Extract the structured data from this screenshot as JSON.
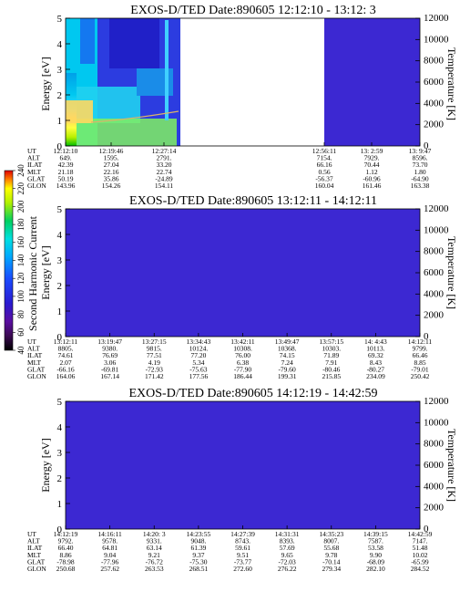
{
  "colors": {
    "background_blue": "#3c28d2",
    "plot_white": "#ffffff",
    "temperature_curve": "#d9b36a"
  },
  "colorbar": {
    "label": "Second Harmonic Current",
    "ticks": [
      "40",
      "60",
      "80",
      "100",
      "120",
      "140",
      "160",
      "180",
      "200",
      "220",
      "240"
    ]
  },
  "ephemeris_row_labels": [
    "UT",
    "ALT",
    "ILAT",
    "MLT",
    "GLAT",
    "GLON"
  ],
  "chart_data": [
    {
      "type": "heatmap",
      "title": "EXOS-D/TED   Date:890605   12:12:10 - 13:12: 3",
      "ylabel": "Energy [eV]",
      "y2label": "Temperature [K]",
      "ylim": [
        0,
        5
      ],
      "y2lim": [
        0,
        12000
      ],
      "yticks": [
        "0",
        "1",
        "2",
        "3",
        "4",
        "5"
      ],
      "y2ticks": [
        "0",
        "2000",
        "4000",
        "6000",
        "8000",
        "10000",
        "12000"
      ],
      "data_gap": "12:27:14 - 12:56:11",
      "ephemeris": [
        [
          "12:12:10",
          "649.",
          "42.39",
          "21.18",
          "50.19",
          "143.96"
        ],
        [
          "12:19:46",
          "1595.",
          "27.04",
          "22.16",
          "35.86",
          "154.26"
        ],
        [
          "12:27:14",
          "2791.",
          "33.20",
          "22.74",
          "-24.89",
          "154.11"
        ],
        [
          "12:56:11",
          "7154.",
          "66.16",
          "0.56",
          "-56.37",
          "160.04"
        ],
        [
          "13: 2:59",
          "7929.",
          "70.44",
          "1.12",
          "-60.96",
          "161.46"
        ],
        [
          "13: 9:47",
          "8596.",
          "73.70",
          "1.80",
          "-64.90",
          "163.38"
        ]
      ]
    },
    {
      "type": "heatmap",
      "title": "EXOS-D/TED   Date:890605   13:12:11 - 14:12:11",
      "ylabel": "Energy [eV]",
      "y2label": "Temperature [K]",
      "ylim": [
        0,
        5
      ],
      "y2lim": [
        0,
        12000
      ],
      "yticks": [
        "0",
        "1",
        "2",
        "3",
        "4",
        "5"
      ],
      "y2ticks": [
        "0",
        "2000",
        "4000",
        "6000",
        "8000",
        "10000",
        "12000"
      ],
      "ephemeris": [
        [
          "13:12:11",
          "8805.",
          "74.61",
          "2.07",
          "-66.16",
          "164.06"
        ],
        [
          "13:19:47",
          "9380.",
          "76.69",
          "3.06",
          "-69.81",
          "167.14"
        ],
        [
          "13:27:15",
          "9815.",
          "77.51",
          "4.19",
          "-72.93",
          "171.42"
        ],
        [
          "13:34:43",
          "10124.",
          "77.20",
          "5.34",
          "-75.63",
          "177.56"
        ],
        [
          "13:42:11",
          "10308.",
          "76.00",
          "6.38",
          "-77.90",
          "186.44"
        ],
        [
          "13:49:47",
          "10368.",
          "74.15",
          "7.24",
          "-79.60",
          "199.31"
        ],
        [
          "13:57:15",
          "10303.",
          "71.89",
          "7.91",
          "-80.46",
          "215.85"
        ],
        [
          "14: 4:43",
          "10113.",
          "69.32",
          "8.43",
          "-80.27",
          "234.09"
        ],
        [
          "14:12:11",
          "9799.",
          "66.46",
          "8.85",
          "-79.01",
          "250.42"
        ]
      ]
    },
    {
      "type": "heatmap",
      "title": "EXOS-D/TED   Date:890605   14:12:19 - 14:42:59",
      "ylabel": "Energy [eV]",
      "y2label": "Temperature [K]",
      "ylim": [
        0,
        5
      ],
      "y2lim": [
        0,
        12000
      ],
      "yticks": [
        "0",
        "1",
        "2",
        "3",
        "4",
        "5"
      ],
      "y2ticks": [
        "0",
        "2000",
        "4000",
        "6000",
        "8000",
        "10000",
        "12000"
      ],
      "ephemeris": [
        [
          "14:12:19",
          "9792.",
          "66.40",
          "8.86",
          "-78.98",
          "250.68"
        ],
        [
          "14:16:11",
          "9578.",
          "64.81",
          "9.04",
          "-77.96",
          "257.62"
        ],
        [
          "14:20: 3",
          "9331.",
          "63.14",
          "9.21",
          "-76.72",
          "263.53"
        ],
        [
          "14:23:55",
          "9048.",
          "61.39",
          "9.37",
          "-75.30",
          "268.51"
        ],
        [
          "14:27:39",
          "8743.",
          "59.61",
          "9.51",
          "-73.77",
          "272.60"
        ],
        [
          "14:31:31",
          "8393.",
          "57.69",
          "9.65",
          "-72.03",
          "276.22"
        ],
        [
          "14:35:23",
          "8007.",
          "55.68",
          "9.78",
          "-70.14",
          "279.34"
        ],
        [
          "14:39:15",
          "7587.",
          "53.58",
          "9.90",
          "-68.09",
          "282.10"
        ],
        [
          "14:42:59",
          "7147.",
          "51.48",
          "10.02",
          "-65.99",
          "284.52"
        ]
      ]
    }
  ]
}
